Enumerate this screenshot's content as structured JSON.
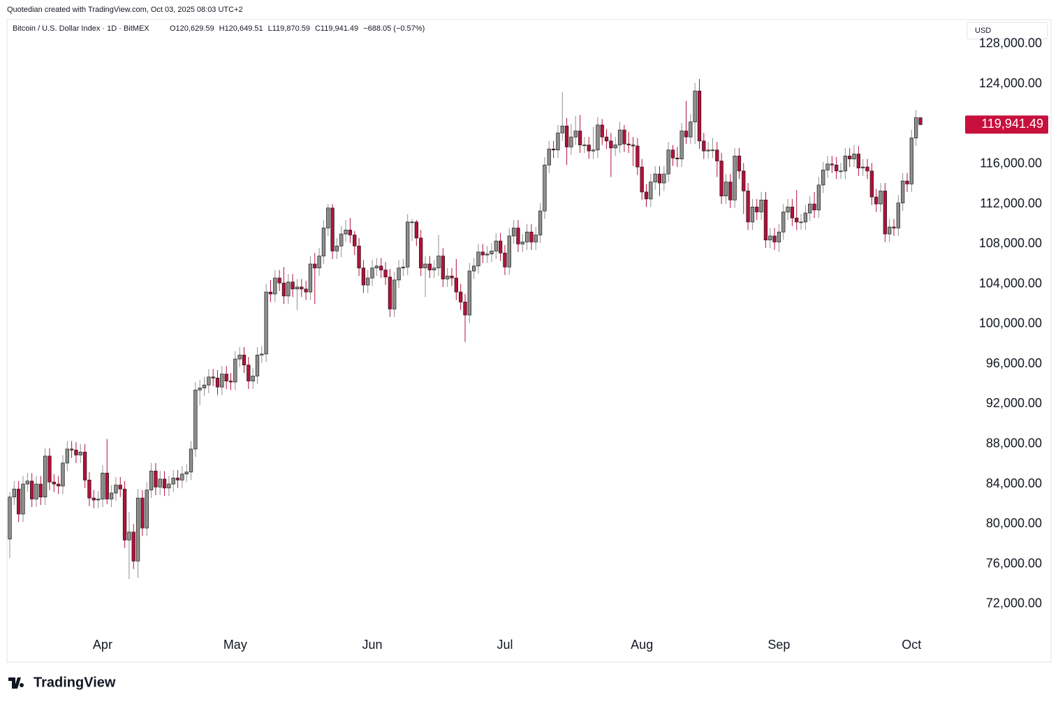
{
  "chart_data": {
    "type": "candlestick",
    "note": "Quotedian created with TradingView.com, Oct 03, 2025 08:03 UTC+2",
    "symbol": "Bitcoin / U.S. Dollar Index · 1D · BitMEX",
    "ohlc_labels": [
      "O120,629.59",
      "H120,649.51",
      "L119,870.59",
      "C119,941.49",
      "−688.05 (−0.57%)"
    ],
    "currency": "USD",
    "last_price_label": "119,941.49",
    "brand": "TradingView",
    "up_color": "#8f8f8f",
    "down_color": "#b5103c",
    "outline_color": "#1a1a1a",
    "last_price_color": "#c8103d",
    "grid": false,
    "ylim": [
      69200,
      130440
    ],
    "yticks": [
      {
        "value": 72000,
        "label": "72,000.00"
      },
      {
        "value": 76000,
        "label": "76,000.00"
      },
      {
        "value": 80000,
        "label": "80,000.00"
      },
      {
        "value": 84000,
        "label": "84,000.00"
      },
      {
        "value": 88000,
        "label": "88,000.00"
      },
      {
        "value": 92000,
        "label": "92,000.00"
      },
      {
        "value": 96000,
        "label": "96,000.00"
      },
      {
        "value": 100000,
        "label": "100,000.00"
      },
      {
        "value": 104000,
        "label": "104,000.00"
      },
      {
        "value": 108000,
        "label": "108,000.00"
      },
      {
        "value": 112000,
        "label": "112,000.00"
      },
      {
        "value": 116000,
        "label": "116,000.00"
      },
      {
        "value": 120000,
        "label": "120,000.00"
      },
      {
        "value": 124000,
        "label": "124,000.00"
      },
      {
        "value": 128000,
        "label": "128,000.00"
      }
    ],
    "xticks": [
      {
        "value": 21,
        "label": "Apr"
      },
      {
        "value": 51,
        "label": "May"
      },
      {
        "value": 82,
        "label": "Jun"
      },
      {
        "value": 112,
        "label": "Jul"
      },
      {
        "value": 143,
        "label": "Aug"
      },
      {
        "value": 174,
        "label": "Sep"
      },
      {
        "value": 204,
        "label": "Oct"
      }
    ],
    "open": [
      78500,
      82700,
      83500,
      81000,
      84000,
      84300,
      82500,
      84000,
      82700,
      86800,
      84200,
      84000,
      83800,
      86100,
      87500,
      87400,
      86900,
      87200,
      84400,
      82600,
      82400,
      82500,
      85100,
      82500,
      83100,
      83900,
      83500,
      78400,
      79200,
      76300,
      82600,
      79600,
      83400,
      85300,
      83700,
      84500,
      83600,
      84000,
      84600,
      84400,
      85000,
      85200,
      87500,
      93400,
      93600,
      93900,
      94700,
      94600,
      93700,
      95000,
      94300,
      94200,
      96500,
      96900,
      95900,
      94300,
      94800,
      96900,
      97000,
      103200,
      103000,
      104600,
      104100,
      102800,
      104200,
      103500,
      103700,
      103500,
      103200,
      106000,
      105600,
      106800,
      109600,
      111600,
      107300,
      107800,
      109000,
      109400,
      108900,
      107800,
      105600,
      103900,
      104600,
      105600,
      105800,
      105400,
      104700,
      101500,
      104400,
      105600,
      105700,
      110200,
      110200,
      108600,
      105600,
      106000,
      105400,
      105600,
      106800,
      104500,
      104800,
      104600,
      103200,
      102200,
      100900,
      105300,
      105800,
      107200,
      106900,
      107000,
      107300,
      108300,
      107100,
      105700,
      108800,
      109600,
      108000,
      108200,
      109200,
      108200,
      108900,
      111300,
      115900,
      117500,
      117400,
      119100,
      119800,
      117700,
      118700,
      119300,
      117900,
      117900,
      117300,
      117400,
      119900,
      118700,
      118300,
      117600,
      117900,
      119400,
      118000,
      117900,
      117800,
      115700,
      113200,
      112500,
      114200,
      115000,
      114100,
      115000,
      117400,
      116600,
      116500,
      119300,
      118700,
      120200,
      123300,
      118300,
      117300,
      117400,
      117400,
      116300,
      112800,
      114200,
      112400,
      116800,
      115300,
      113300,
      110200,
      111700,
      111200,
      112400,
      108400,
      108800,
      108200,
      109200,
      111200,
      111700,
      110600,
      110200,
      110200,
      111100,
      112000,
      111400,
      113900,
      115400,
      116000,
      115900,
      115300,
      115300,
      116800,
      116500,
      117000,
      115600,
      115700,
      115300,
      112700,
      112000,
      113300,
      109000,
      109700,
      109600,
      112100,
      114300,
      114000,
      118600,
      120629.59
    ],
    "high": [
      83200,
      84300,
      84300,
      84800,
      85100,
      85100,
      84800,
      84800,
      87600,
      87600,
      85000,
      84800,
      86900,
      88300,
      88300,
      88200,
      88000,
      88000,
      85200,
      83400,
      83300,
      85900,
      88500,
      83900,
      84700,
      84700,
      84300,
      81200,
      80000,
      83500,
      83400,
      84200,
      86100,
      86100,
      85300,
      85300,
      84800,
      85400,
      85400,
      85800,
      86000,
      88300,
      94200,
      94400,
      94700,
      95500,
      95500,
      95400,
      95800,
      95800,
      95100,
      97300,
      97700,
      97700,
      96700,
      95600,
      97700,
      97800,
      104000,
      104400,
      105400,
      105400,
      105700,
      105000,
      105000,
      104500,
      104500,
      104300,
      106800,
      107100,
      107600,
      110400,
      112000,
      112000,
      108600,
      109800,
      110400,
      110600,
      109300,
      108600,
      106400,
      105400,
      106400,
      106600,
      106600,
      106200,
      105500,
      105200,
      106400,
      106500,
      111000,
      110500,
      110400,
      109400,
      106800,
      106800,
      106400,
      108900,
      107600,
      105600,
      105600,
      106500,
      104000,
      103000,
      106100,
      106600,
      108000,
      108000,
      107800,
      108100,
      109100,
      109100,
      107900,
      109600,
      110400,
      110400,
      109000,
      110000,
      110000,
      109700,
      112100,
      116700,
      118300,
      118300,
      119900,
      123200,
      120600,
      120000,
      120800,
      120900,
      118700,
      118700,
      119700,
      120700,
      120500,
      119500,
      119100,
      118700,
      120200,
      119900,
      119200,
      118700,
      118600,
      116500,
      114000,
      115000,
      115800,
      115800,
      115800,
      118200,
      117900,
      117700,
      120100,
      122300,
      121000,
      124100,
      124500,
      119100,
      118200,
      118600,
      118200,
      117100,
      115000,
      115000,
      117600,
      117600,
      116100,
      114100,
      112500,
      112500,
      113200,
      113200,
      109600,
      109600,
      110000,
      112000,
      112500,
      112500,
      113400,
      111000,
      111900,
      112800,
      113200,
      114700,
      116200,
      116800,
      116800,
      116700,
      116100,
      117600,
      117600,
      117900,
      117800,
      116500,
      116500,
      116100,
      113500,
      114100,
      114100,
      110500,
      110500,
      112900,
      115100,
      115100,
      119400,
      121400,
      120649.51
    ],
    "low": [
      76600,
      81900,
      80200,
      80200,
      83200,
      81700,
      81700,
      81900,
      81900,
      83400,
      83200,
      83000,
      83000,
      85300,
      86600,
      86100,
      86100,
      83600,
      81800,
      81600,
      81600,
      81700,
      82000,
      81700,
      82300,
      82700,
      77600,
      74500,
      75500,
      74600,
      78800,
      78800,
      82600,
      82900,
      82900,
      82800,
      82800,
      83200,
      83600,
      83600,
      84200,
      84400,
      86700,
      91900,
      92800,
      93100,
      93800,
      92900,
      92900,
      93500,
      93400,
      93400,
      95700,
      95100,
      93500,
      93500,
      94000,
      96100,
      96200,
      102200,
      102200,
      103300,
      102000,
      102000,
      102700,
      101400,
      102700,
      102400,
      102400,
      102000,
      104800,
      106000,
      108800,
      106500,
      106500,
      106700,
      108200,
      108100,
      106900,
      104800,
      103100,
      103100,
      103800,
      104800,
      104600,
      103900,
      100700,
      100700,
      103600,
      104800,
      104900,
      108300,
      107800,
      104800,
      102700,
      104600,
      104600,
      104800,
      103700,
      103700,
      103800,
      102400,
      101400,
      98200,
      100100,
      104500,
      105000,
      106100,
      106100,
      106200,
      106500,
      106300,
      104900,
      104900,
      108000,
      107200,
      107200,
      107400,
      107400,
      107400,
      108100,
      110500,
      115100,
      116600,
      116600,
      118300,
      115900,
      116900,
      117900,
      117100,
      117100,
      116500,
      116500,
      116600,
      117900,
      117500,
      114700,
      116800,
      117100,
      117200,
      117100,
      115800,
      114900,
      112400,
      111700,
      111700,
      113400,
      112800,
      113300,
      114200,
      115800,
      115700,
      115700,
      118000,
      118000,
      118000,
      117500,
      116500,
      116500,
      116600,
      114700,
      112000,
      112000,
      111600,
      111600,
      114500,
      111000,
      109400,
      109400,
      110400,
      110400,
      107600,
      107600,
      107400,
      107200,
      108400,
      110400,
      109800,
      109400,
      109400,
      109400,
      110300,
      110600,
      110600,
      113100,
      114600,
      115100,
      114500,
      114500,
      114500,
      115700,
      115700,
      114800,
      114800,
      114500,
      111900,
      111200,
      111200,
      108200,
      108200,
      108800,
      108800,
      111300,
      113200,
      113200,
      117800,
      119870.59
    ],
    "close": [
      82700,
      83500,
      81000,
      84000,
      84300,
      82500,
      84000,
      82700,
      86800,
      84200,
      84000,
      83800,
      86100,
      87500,
      87400,
      86900,
      87200,
      84400,
      82600,
      82400,
      82500,
      85100,
      82500,
      83100,
      83900,
      83500,
      78400,
      79200,
      76300,
      82600,
      79600,
      83400,
      85300,
      83700,
      84500,
      83600,
      84000,
      84600,
      84400,
      85000,
      85200,
      87500,
      93400,
      93600,
      93900,
      94700,
      94600,
      93700,
      95000,
      94300,
      94200,
      96500,
      96900,
      95900,
      94300,
      94800,
      96900,
      97000,
      103200,
      103000,
      104600,
      104100,
      102800,
      104200,
      103500,
      103700,
      103500,
      103200,
      106000,
      105600,
      106800,
      109600,
      111600,
      107300,
      107800,
      109000,
      109400,
      108900,
      107800,
      105600,
      103900,
      104600,
      105600,
      105800,
      105400,
      104700,
      101500,
      104400,
      105600,
      105700,
      110200,
      110200,
      108600,
      105600,
      106000,
      105400,
      105600,
      106800,
      104500,
      104800,
      104600,
      103200,
      102200,
      100900,
      105300,
      105800,
      107200,
      106900,
      107000,
      107300,
      108300,
      107100,
      105700,
      108800,
      109600,
      108000,
      108200,
      109200,
      108200,
      108900,
      111300,
      115900,
      117500,
      117400,
      119100,
      119800,
      117700,
      118700,
      119300,
      117900,
      117900,
      117300,
      117400,
      119900,
      118700,
      118300,
      117600,
      117900,
      119400,
      118000,
      117900,
      117800,
      115700,
      113200,
      112500,
      114200,
      115000,
      114100,
      115000,
      117400,
      116600,
      116500,
      119300,
      118700,
      120200,
      123300,
      118300,
      117300,
      117400,
      117400,
      116300,
      112800,
      114200,
      112400,
      116800,
      115300,
      113300,
      110200,
      111700,
      111200,
      112400,
      108400,
      108800,
      108200,
      109200,
      111200,
      111700,
      110600,
      110200,
      110200,
      111100,
      112000,
      111400,
      113900,
      115400,
      116000,
      115900,
      115300,
      115300,
      116800,
      116500,
      117000,
      115600,
      115700,
      115300,
      112700,
      112000,
      113300,
      109000,
      109700,
      109600,
      112100,
      114300,
      114000,
      118600,
      120630,
      119941.49
    ]
  }
}
